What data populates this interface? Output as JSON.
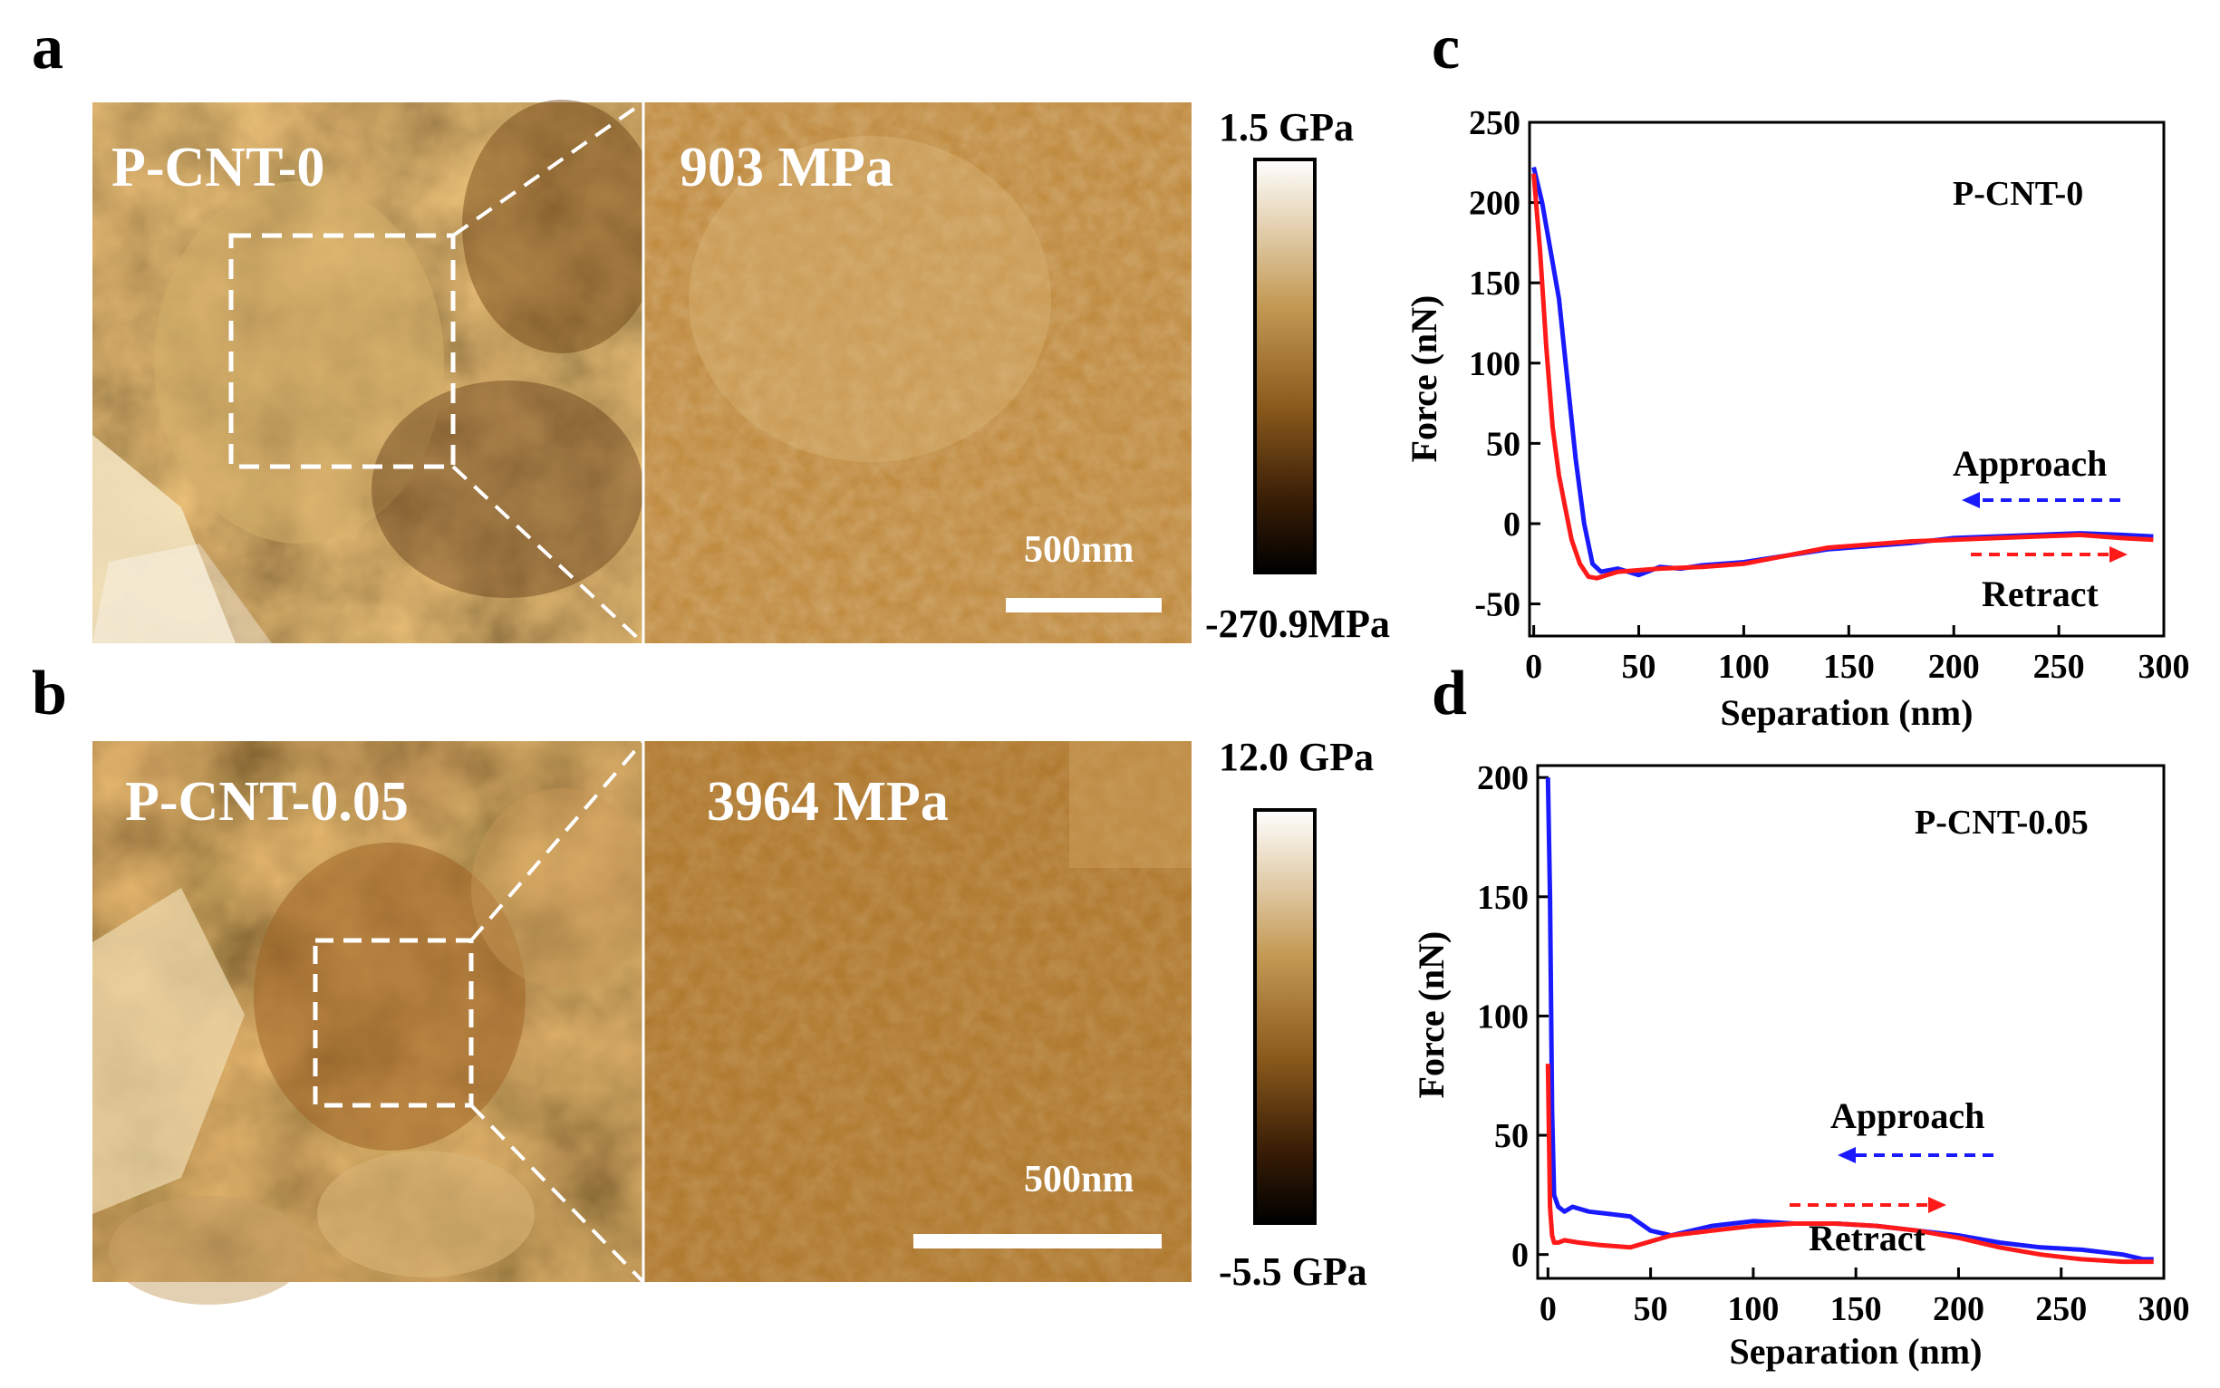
{
  "panel_labels": {
    "a": "a",
    "b": "b",
    "c": "c",
    "d": "d"
  },
  "panel_a": {
    "sample": "P-CNT-0",
    "zoom_modulus": "903 MPa",
    "scale_bar": "500nm",
    "colorbar_max": "1.5 GPa",
    "colorbar_min": "-270.9MPa"
  },
  "panel_b": {
    "sample": "P-CNT-0.05",
    "zoom_modulus": "3964 MPa",
    "scale_bar": "500nm",
    "colorbar_max": "12.0 GPa",
    "colorbar_min": "-5.5 GPa"
  },
  "colors": {
    "approach": "#1a1aff",
    "retract": "#ff1a1a",
    "afm_mid": "#a0702a"
  },
  "chart_data": [
    {
      "type": "line",
      "title": "P-CNT-0",
      "xlabel": "Separation (nm)",
      "ylabel": "Force (nN)",
      "xlim": [
        -2,
        300
      ],
      "ylim": [
        -70,
        250
      ],
      "xticks": [
        0,
        50,
        100,
        150,
        200,
        250,
        300
      ],
      "yticks": [
        -50,
        0,
        50,
        100,
        150,
        200,
        250
      ],
      "annotations": {
        "approach": "Approach",
        "retract": "Retract"
      },
      "series": [
        {
          "name": "Approach",
          "color": "#1a1aff",
          "x": [
            0,
            4,
            8,
            12,
            16,
            20,
            24,
            28,
            32,
            40,
            50,
            60,
            70,
            80,
            100,
            120,
            140,
            160,
            180,
            200,
            220,
            240,
            260,
            280,
            295
          ],
          "y": [
            222,
            200,
            170,
            140,
            90,
            40,
            0,
            -25,
            -30,
            -28,
            -32,
            -27,
            -28,
            -26,
            -24,
            -20,
            -16,
            -14,
            -12,
            -9,
            -8,
            -7,
            -6,
            -7,
            -8
          ]
        },
        {
          "name": "Retract",
          "color": "#ff1a1a",
          "x": [
            0,
            3,
            6,
            9,
            12,
            15,
            18,
            22,
            26,
            30,
            40,
            50,
            60,
            80,
            100,
            120,
            140,
            160,
            180,
            200,
            220,
            240,
            260,
            280,
            295
          ],
          "y": [
            218,
            170,
            110,
            60,
            30,
            10,
            -10,
            -25,
            -33,
            -34,
            -30,
            -29,
            -28,
            -27,
            -25,
            -20,
            -15,
            -13,
            -11,
            -10,
            -9,
            -8,
            -7,
            -9,
            -10
          ]
        }
      ]
    },
    {
      "type": "line",
      "title": "P-CNT-0.05",
      "xlabel": "Separation (nm)",
      "ylabel": "Force (nN)",
      "xlim": [
        -5,
        300
      ],
      "ylim": [
        -10,
        205
      ],
      "xticks": [
        0,
        50,
        100,
        150,
        200,
        250,
        300
      ],
      "yticks": [
        0,
        50,
        100,
        150,
        200
      ],
      "annotations": {
        "approach": "Approach",
        "retract": "Retract"
      },
      "series": [
        {
          "name": "Approach",
          "color": "#1a1aff",
          "x": [
            0,
            1,
            2,
            3,
            5,
            8,
            12,
            20,
            30,
            40,
            50,
            60,
            80,
            100,
            120,
            140,
            160,
            180,
            200,
            220,
            240,
            260,
            280,
            290,
            295
          ],
          "y": [
            200,
            150,
            60,
            25,
            20,
            18,
            20,
            18,
            17,
            16,
            10,
            8,
            12,
            14,
            13,
            13,
            12,
            10,
            8,
            5,
            3,
            2,
            0,
            -2,
            -2
          ]
        },
        {
          "name": "Retract",
          "color": "#ff1a1a",
          "x": [
            0,
            1,
            2,
            3,
            5,
            8,
            15,
            25,
            40,
            60,
            80,
            100,
            120,
            140,
            160,
            180,
            200,
            220,
            240,
            260,
            280,
            295
          ],
          "y": [
            80,
            20,
            8,
            5,
            5,
            6,
            5,
            4,
            3,
            8,
            10,
            12,
            13,
            13,
            12,
            10,
            7,
            3,
            0,
            -2,
            -3,
            -3
          ]
        }
      ]
    }
  ]
}
